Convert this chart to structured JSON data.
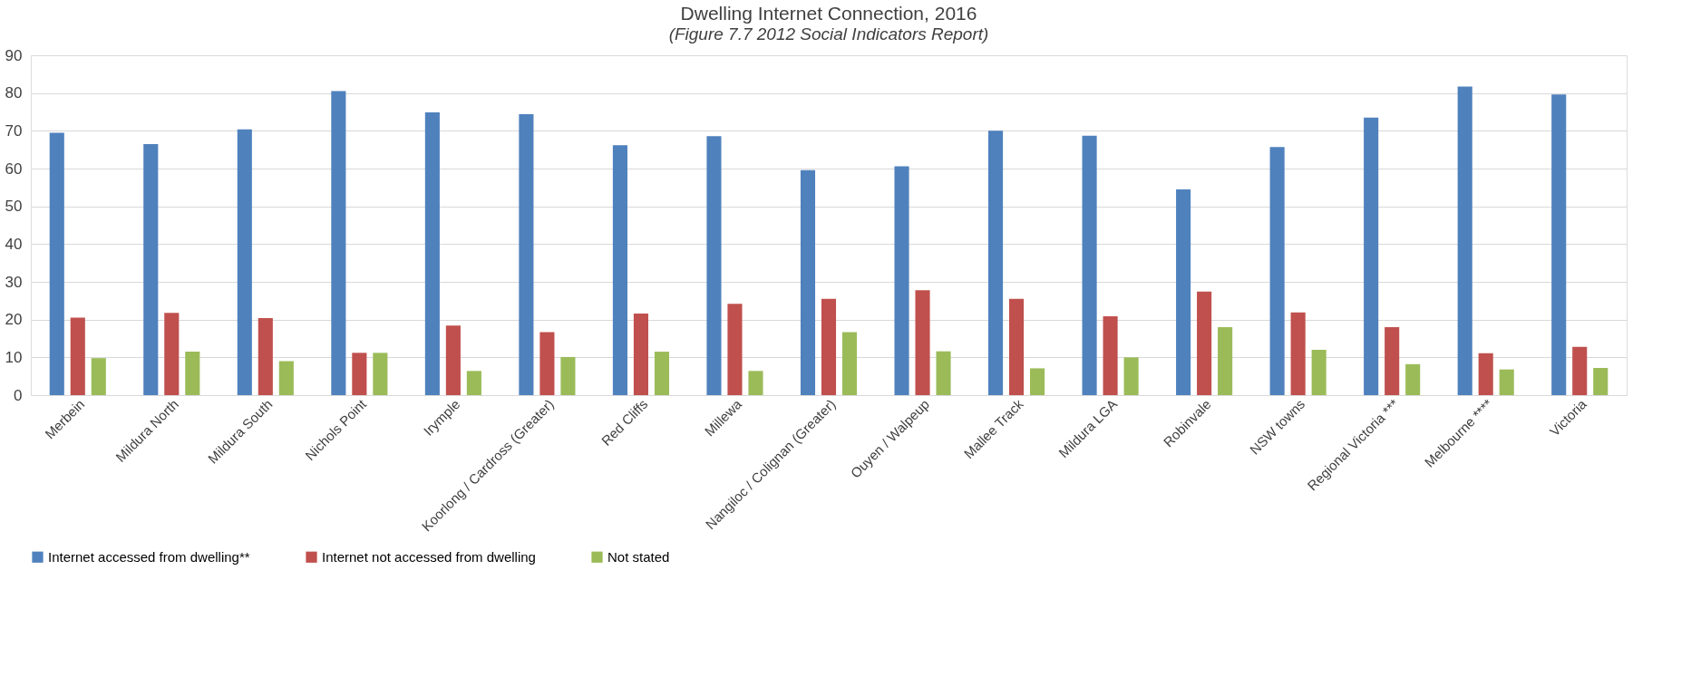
{
  "chart_data": {
    "type": "bar",
    "title": "Dwelling Internet Connection, 2016",
    "subtitle": "(Figure 7.7 2012 Social Indicators Report)",
    "categories": [
      "Merbein",
      "Mildura North",
      "Mildura South",
      "Nichols Point",
      "Irymple",
      "Koorlong / Cardross (Greater)",
      "Red Cliffs",
      "Millewa",
      "Nangiloc / Colignan (Greater)",
      "Ouyen / Walpeup",
      "Mallee Track",
      "Mildura LGA",
      "Robinvale",
      "NSW towns",
      "Regional Victoria ***",
      "Melbourne ****",
      "Victoria"
    ],
    "series": [
      {
        "name": "Internet accessed from dwelling**",
        "color": "#4f81bd",
        "values": [
          69.5,
          66.5,
          70.4,
          80.5,
          74.9,
          74.4,
          66.2,
          68.6,
          59.6,
          60.6,
          70.0,
          68.7,
          54.5,
          65.7,
          73.5,
          81.7,
          79.6
        ]
      },
      {
        "name": "Internet not accessed from dwelling",
        "color": "#c0504d",
        "values": [
          20.5,
          21.8,
          20.4,
          11.2,
          18.4,
          16.7,
          21.6,
          24.2,
          25.5,
          27.8,
          25.5,
          20.9,
          27.4,
          21.9,
          18.0,
          11.1,
          12.8
        ]
      },
      {
        "name": "Not stated",
        "color": "#9bbb59",
        "values": [
          9.8,
          11.5,
          9.0,
          11.2,
          6.4,
          10.1,
          11.5,
          6.4,
          16.7,
          11.6,
          7.1,
          10.0,
          18.0,
          12.0,
          8.2,
          6.8,
          7.2
        ]
      }
    ],
    "ylim": [
      0,
      90
    ],
    "yticks": [
      0,
      10,
      20,
      30,
      40,
      50,
      60,
      70,
      80,
      90
    ],
    "grid": "y",
    "legend": "bottom"
  }
}
